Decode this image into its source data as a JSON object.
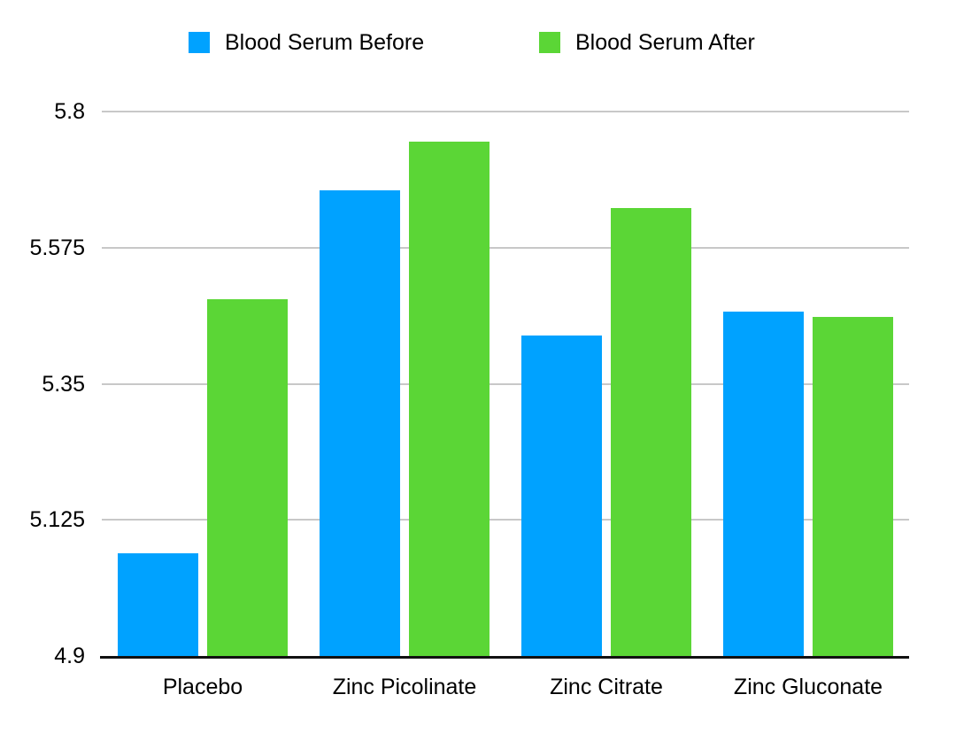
{
  "chart_data": {
    "type": "bar",
    "title": "",
    "categories": [
      "Placebo",
      "Zinc Picolinate",
      "Zinc Citrate",
      "Zinc Gluconate"
    ],
    "series": [
      {
        "name": "Blood Serum Before",
        "color": "#00A2FF",
        "values": [
          5.07,
          5.67,
          5.43,
          5.47
        ]
      },
      {
        "name": "Blood Serum After",
        "color": "#5BD636",
        "values": [
          5.49,
          5.75,
          5.64,
          5.46
        ]
      }
    ],
    "ylim": [
      4.9,
      5.8
    ],
    "yticks": [
      {
        "value": 5.8,
        "label": "5.8"
      },
      {
        "value": 5.575,
        "label": "5.575"
      },
      {
        "value": 5.35,
        "label": "5.35"
      },
      {
        "value": 5.125,
        "label": "5.125"
      },
      {
        "value": 4.9,
        "label": "4.9"
      }
    ],
    "grid": "horizontal",
    "legend_position": "top",
    "colors": {
      "gridline": "#C8C8C8",
      "axis": "#111111",
      "text": "#000000",
      "background": "#FFFFFF"
    }
  }
}
